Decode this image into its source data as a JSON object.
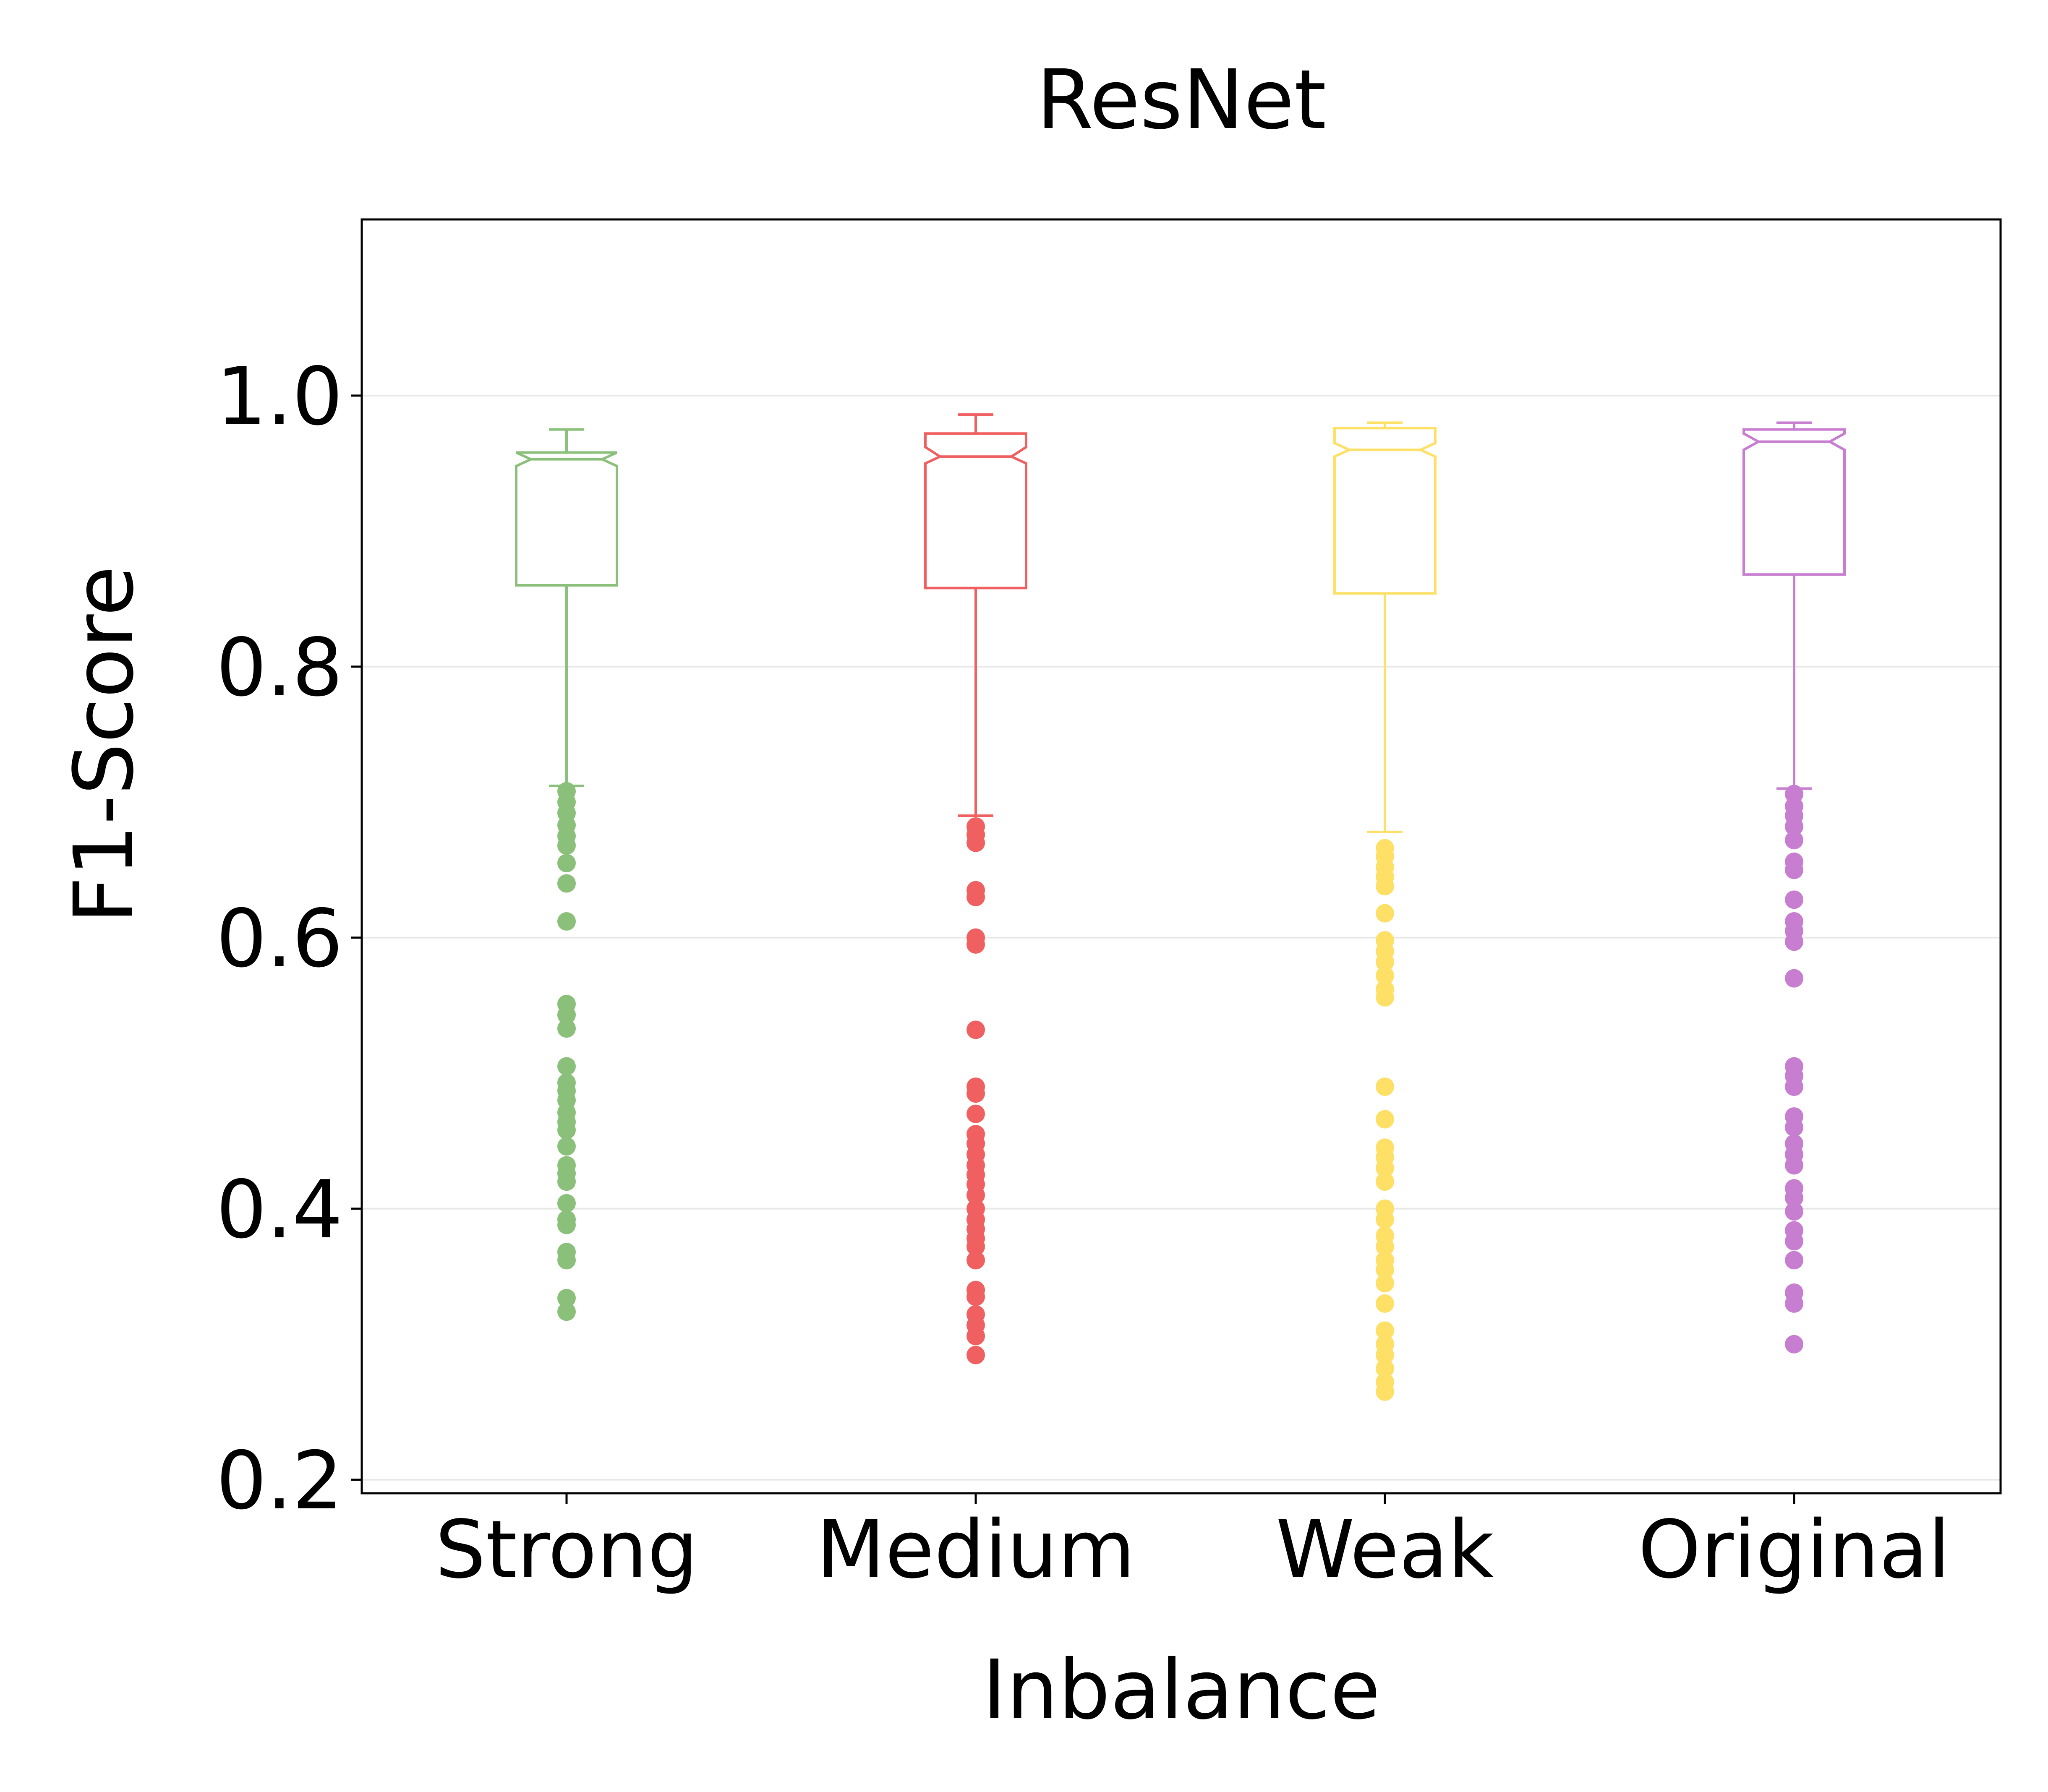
{
  "chart_data": {
    "type": "box",
    "title": "ResNet",
    "xlabel": "Inbalance",
    "ylabel": "F1-Score",
    "ylim": [
      0.19,
      1.13
    ],
    "yticks": [
      "0.2",
      "0.4",
      "0.6",
      "0.8",
      "1.0"
    ],
    "grid": true,
    "notched": true,
    "categories": [
      "Strong",
      "Medium",
      "Weak",
      "Original"
    ],
    "series": [
      {
        "category": "Strong",
        "color": "#8bc07b",
        "whisker_low": 0.712,
        "q1": 0.86,
        "notch_low": 0.948,
        "median": 0.953,
        "notch_high": 0.958,
        "q3": 0.958,
        "whisker_high": 0.975,
        "outliers": [
          0.708,
          0.7,
          0.692,
          0.683,
          0.675,
          0.668,
          0.655,
          0.64,
          0.612,
          0.551,
          0.543,
          0.533,
          0.505,
          0.493,
          0.487,
          0.48,
          0.471,
          0.464,
          0.458,
          0.446,
          0.432,
          0.426,
          0.42,
          0.404,
          0.392,
          0.388,
          0.368,
          0.362,
          0.334,
          0.324
        ]
      },
      {
        "category": "Medium",
        "color": "#f06060",
        "whisker_low": 0.69,
        "q1": 0.858,
        "notch_low": 0.95,
        "median": 0.955,
        "notch_high": 0.962,
        "q3": 0.972,
        "whisker_high": 0.986,
        "outliers": [
          0.682,
          0.676,
          0.67,
          0.635,
          0.63,
          0.6,
          0.595,
          0.532,
          0.49,
          0.485,
          0.47,
          0.455,
          0.448,
          0.44,
          0.432,
          0.425,
          0.418,
          0.41,
          0.4,
          0.392,
          0.385,
          0.378,
          0.372,
          0.362,
          0.34,
          0.335,
          0.322,
          0.314,
          0.306,
          0.292
        ]
      },
      {
        "category": "Weak",
        "color": "#ffe066",
        "whisker_low": 0.678,
        "q1": 0.854,
        "notch_low": 0.955,
        "median": 0.96,
        "notch_high": 0.965,
        "q3": 0.976,
        "whisker_high": 0.98,
        "outliers": [
          0.666,
          0.66,
          0.652,
          0.645,
          0.638,
          0.618,
          0.598,
          0.59,
          0.582,
          0.572,
          0.562,
          0.556,
          0.49,
          0.466,
          0.445,
          0.438,
          0.43,
          0.42,
          0.4,
          0.392,
          0.38,
          0.372,
          0.362,
          0.355,
          0.345,
          0.33,
          0.31,
          0.3,
          0.292,
          0.282,
          0.272,
          0.265
        ]
      },
      {
        "category": "Original",
        "color": "#c77dd0",
        "whisker_low": 0.71,
        "q1": 0.868,
        "notch_low": 0.96,
        "median": 0.966,
        "notch_high": 0.972,
        "q3": 0.975,
        "whisker_high": 0.98,
        "outliers": [
          0.706,
          0.697,
          0.69,
          0.682,
          0.672,
          0.656,
          0.65,
          0.628,
          0.612,
          0.605,
          0.597,
          0.57,
          0.505,
          0.498,
          0.49,
          0.468,
          0.46,
          0.448,
          0.44,
          0.432,
          0.415,
          0.408,
          0.398,
          0.384,
          0.376,
          0.362,
          0.338,
          0.33,
          0.3
        ]
      }
    ]
  }
}
